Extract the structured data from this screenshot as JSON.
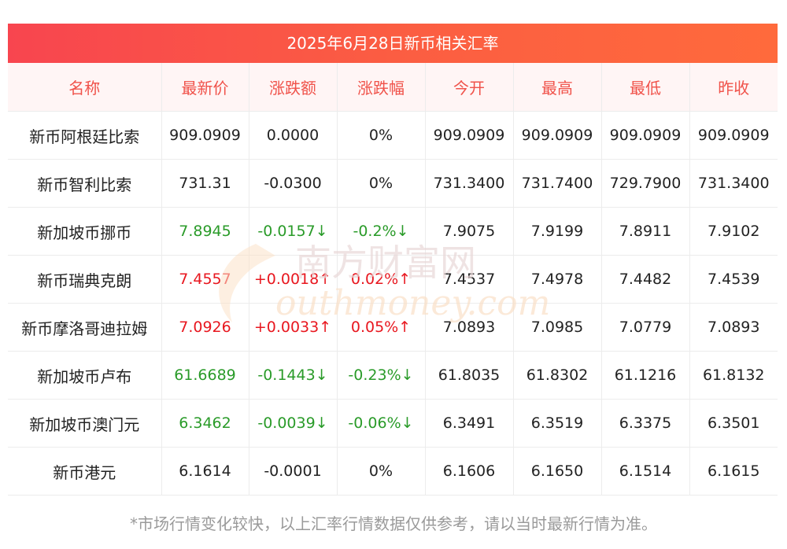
{
  "title": "2025年6月28日新币相关汇率",
  "headers": [
    "名称",
    "最新价",
    "涨跌额",
    "涨跌幅",
    "今开",
    "最高",
    "最低",
    "昨收"
  ],
  "rows": [
    {
      "name": "新币阿根廷比索",
      "price": "909.0909",
      "change": "0.0000",
      "pct": "0%",
      "open": "909.0909",
      "high": "909.0909",
      "low": "909.0909",
      "prev": "909.0909",
      "trend": "flat"
    },
    {
      "name": "新币智利比索",
      "price": "731.31",
      "change": "-0.0300",
      "pct": "0%",
      "open": "731.3400",
      "high": "731.7400",
      "low": "729.7900",
      "prev": "731.3400",
      "trend": "flat"
    },
    {
      "name": "新加坡币挪币",
      "price": "7.8945",
      "change": "-0.0157↓",
      "pct": "-0.2%↓",
      "open": "7.9075",
      "high": "7.9199",
      "low": "7.8911",
      "prev": "7.9102",
      "trend": "down"
    },
    {
      "name": "新币瑞典克朗",
      "price": "7.4557",
      "change": "+0.0018↑",
      "pct": "0.02%↑",
      "open": "7.4537",
      "high": "7.4978",
      "low": "7.4482",
      "prev": "7.4539",
      "trend": "up"
    },
    {
      "name": "新币摩洛哥迪拉姆",
      "price": "7.0926",
      "change": "+0.0033↑",
      "pct": "0.05%↑",
      "open": "7.0893",
      "high": "7.0985",
      "low": "7.0779",
      "prev": "7.0893",
      "trend": "up"
    },
    {
      "name": "新加坡币卢布",
      "price": "61.6689",
      "change": "-0.1443↓",
      "pct": "-0.23%↓",
      "open": "61.8035",
      "high": "61.8302",
      "low": "61.1216",
      "prev": "61.8132",
      "trend": "down"
    },
    {
      "name": "新加坡币澳门元",
      "price": "6.3462",
      "change": "-0.0039↓",
      "pct": "-0.06%↓",
      "open": "6.3491",
      "high": "6.3519",
      "low": "6.3375",
      "prev": "6.3501",
      "trend": "down"
    },
    {
      "name": "新币港元",
      "price": "6.1614",
      "change": "-0.0001",
      "pct": "0%",
      "open": "6.1606",
      "high": "6.1650",
      "low": "6.1514",
      "prev": "6.1615",
      "trend": "flat"
    }
  ],
  "note": "*市场行情变化较快，以上汇率行情数据仅供参考，请以当时最新行情为准。",
  "watermark": {
    "cn": "南方财富网",
    "en": "outhmoney.com"
  },
  "colors": {
    "up": "#e8171f",
    "down": "#2a9b29",
    "header_text": "#f0524a",
    "banner_start": "#f8454f",
    "banner_end": "#ff6a3c"
  }
}
